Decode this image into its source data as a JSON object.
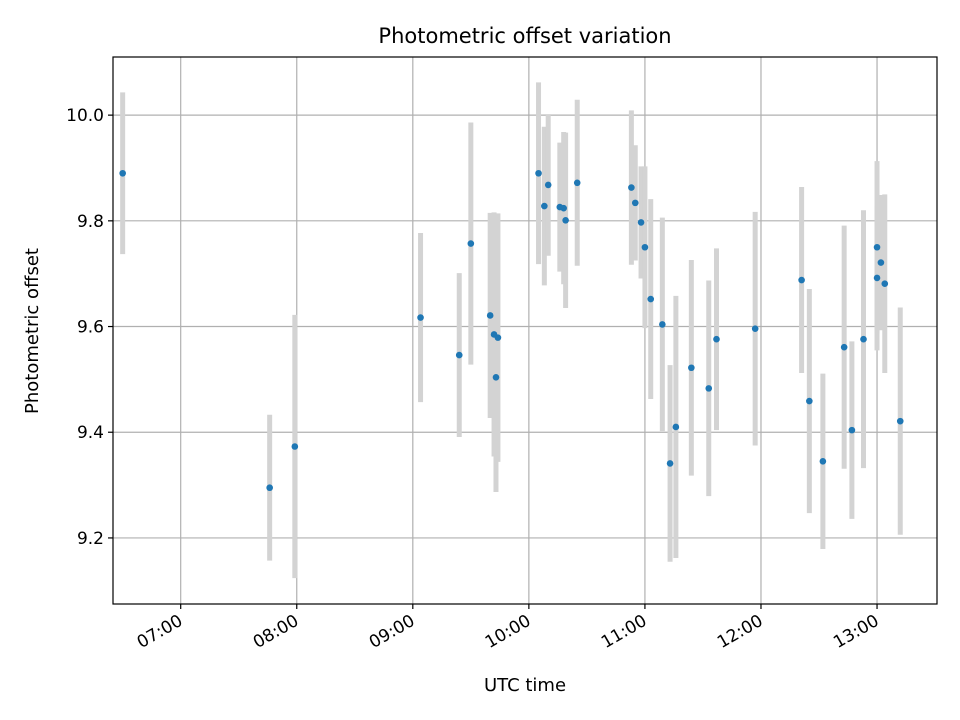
{
  "chart_data": {
    "type": "scatter",
    "title": "Photometric offset variation",
    "xlabel": "UTC time",
    "ylabel": "Photometric offset",
    "xlim": [
      "06:25",
      "13:31"
    ],
    "ylim": [
      9.075,
      10.11
    ],
    "x_ticks": [
      "07:00",
      "08:00",
      "09:00",
      "10:00",
      "11:00",
      "12:00",
      "13:00"
    ],
    "y_ticks": [
      "9.2",
      "9.4",
      "9.6",
      "9.8",
      "10.0"
    ],
    "grid": true,
    "point_color": "#1f77b4",
    "errorbar_color": "#d3d3d3",
    "points": [
      {
        "x": "06:30",
        "y": 9.89,
        "err": 0.153
      },
      {
        "x": "07:46",
        "y": 9.295,
        "err": 0.138
      },
      {
        "x": "07:59",
        "y": 9.373,
        "err": 0.249
      },
      {
        "x": "09:04",
        "y": 9.617,
        "err": 0.16
      },
      {
        "x": "09:24",
        "y": 9.546,
        "err": 0.155
      },
      {
        "x": "09:30",
        "y": 9.757,
        "err": 0.229
      },
      {
        "x": "09:40",
        "y": 9.621,
        "err": 0.194
      },
      {
        "x": "09:42",
        "y": 9.585,
        "err": 0.231
      },
      {
        "x": "09:43",
        "y": 9.504,
        "err": 0.217
      },
      {
        "x": "09:44",
        "y": 9.579,
        "err": 0.235
      },
      {
        "x": "10:05",
        "y": 9.89,
        "err": 0.172
      },
      {
        "x": "10:08",
        "y": 9.828,
        "err": 0.15
      },
      {
        "x": "10:10",
        "y": 9.868,
        "err": 0.134
      },
      {
        "x": "10:16",
        "y": 9.826,
        "err": 0.122
      },
      {
        "x": "10:18",
        "y": 9.824,
        "err": 0.144
      },
      {
        "x": "10:19",
        "y": 9.801,
        "err": 0.166
      },
      {
        "x": "10:25",
        "y": 9.872,
        "err": 0.157
      },
      {
        "x": "10:53",
        "y": 9.863,
        "err": 0.146
      },
      {
        "x": "10:55",
        "y": 9.834,
        "err": 0.109
      },
      {
        "x": "10:58",
        "y": 9.797,
        "err": 0.106
      },
      {
        "x": "11:00",
        "y": 9.75,
        "err": 0.153
      },
      {
        "x": "11:03",
        "y": 9.652,
        "err": 0.189
      },
      {
        "x": "11:09",
        "y": 9.604,
        "err": 0.202
      },
      {
        "x": "11:13",
        "y": 9.341,
        "err": 0.186
      },
      {
        "x": "11:16",
        "y": 9.41,
        "err": 0.248
      },
      {
        "x": "11:24",
        "y": 9.522,
        "err": 0.204
      },
      {
        "x": "11:33",
        "y": 9.483,
        "err": 0.204
      },
      {
        "x": "11:37",
        "y": 9.576,
        "err": 0.172
      },
      {
        "x": "11:57",
        "y": 9.596,
        "err": 0.221
      },
      {
        "x": "12:21",
        "y": 9.688,
        "err": 0.176
      },
      {
        "x": "12:25",
        "y": 9.459,
        "err": 0.212
      },
      {
        "x": "12:32",
        "y": 9.345,
        "err": 0.166
      },
      {
        "x": "12:43",
        "y": 9.561,
        "err": 0.23
      },
      {
        "x": "12:47",
        "y": 9.404,
        "err": 0.168
      },
      {
        "x": "12:53",
        "y": 9.576,
        "err": 0.244
      },
      {
        "x": "13:00",
        "y": 9.692,
        "err": 0.137
      },
      {
        "x": "13:00",
        "y": 9.75,
        "err": 0.163
      },
      {
        "x": "13:02",
        "y": 9.721,
        "err": 0.128
      },
      {
        "x": "13:04",
        "y": 9.681,
        "err": 0.169
      },
      {
        "x": "13:12",
        "y": 9.421,
        "err": 0.215
      }
    ]
  }
}
